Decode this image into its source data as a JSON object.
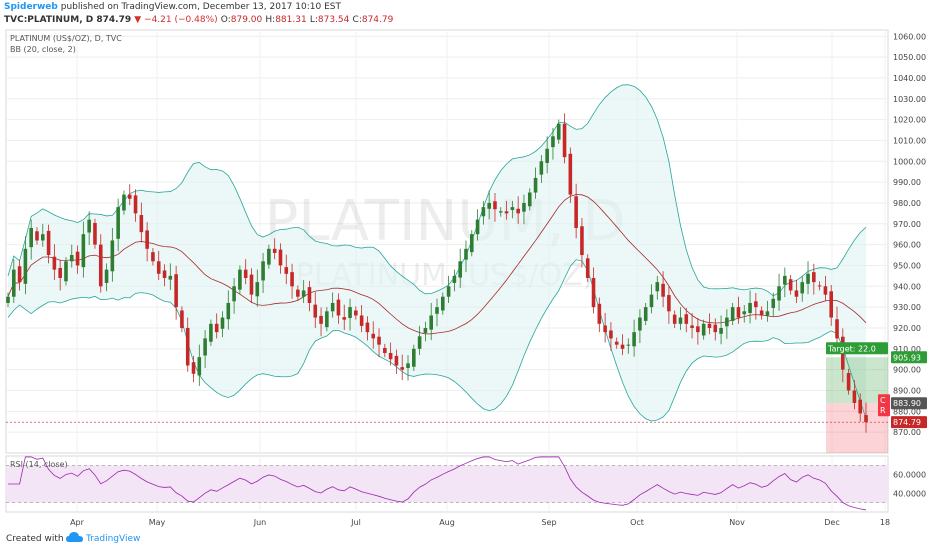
{
  "header": {
    "author": "Spiderweb",
    "published_text": "published on TradingView.com, December 13, 2017 10:10 EST",
    "symbol": "TVC:PLATINUM, D",
    "last": "874.79",
    "change": "−4.21 (−0.48%)",
    "o_label": "O:",
    "o_value": "879.00",
    "h_label": "H:",
    "h_value": "881.31",
    "l_label": "L:",
    "l_value": "873.54",
    "c_label": "C:",
    "c_value": "874.79"
  },
  "footer": {
    "created_with": "Created with",
    "brand": "TradingView"
  },
  "colors": {
    "up": "#2e7d32",
    "down": "#c62828",
    "bb_band": "#26a69a",
    "bb_fill": "#e0f2f1",
    "bb_basis": "#a52a2a",
    "rsi_line": "#9c27b0",
    "rsi_fill": "#f3e5f5",
    "target_green": "#2e9d36",
    "stop_red": "#f23645"
  },
  "chart_data": {
    "type": "candlestick",
    "title": "PLATINUM (US$/OZ), D, TVC",
    "watermark": [
      "PLATINUM, D",
      "PLATINUM (US$/OZ)"
    ],
    "indicator_bb": "BB (20, close, 2)",
    "indicator_rsi": "RSI (14, close)",
    "x_ticks": [
      "Apr",
      "May",
      "Jun",
      "Jul",
      "Aug",
      "Sep",
      "Oct",
      "Nov",
      "Dec",
      "18"
    ],
    "y_range": [
      860,
      1063
    ],
    "y_ticks": [
      870,
      880,
      890,
      900,
      910,
      920,
      930,
      940,
      950,
      960,
      970,
      980,
      990,
      1000,
      1010,
      1020,
      1030,
      1040,
      1050,
      1060
    ],
    "rsi_ticks": [
      "60.0000",
      "40.0000"
    ],
    "rsi_range": [
      20,
      80
    ],
    "rsi_levels": [
      70,
      30
    ],
    "price_labels": {
      "target_label": "Target: 22.0",
      "target_price": "905.93",
      "entry_price": "883.90",
      "current_price": "874.79",
      "stop_badge_c": "C",
      "stop_badge_r": "R"
    },
    "closes": [
      935,
      948,
      942,
      958,
      968,
      962,
      965,
      955,
      948,
      944,
      952,
      955,
      950,
      965,
      972,
      960,
      940,
      948,
      962,
      978,
      984,
      982,
      975,
      966,
      958,
      952,
      946,
      944,
      945,
      930,
      920,
      902,
      898,
      906,
      915,
      922,
      918,
      925,
      932,
      940,
      948,
      944,
      936,
      942,
      952,
      958,
      956,
      950,
      946,
      940,
      935,
      938,
      932,
      925,
      922,
      928,
      932,
      926,
      924,
      930,
      926,
      921,
      918,
      915,
      912,
      908,
      905,
      902,
      900,
      903,
      910,
      916,
      920,
      926,
      930,
      935,
      940,
      945,
      952,
      958,
      965,
      972,
      978,
      980,
      977,
      976,
      975,
      978,
      975,
      980,
      985,
      992,
      1000,
      1006,
      1012,
      1018,
      1002,
      984,
      968,
      955,
      944,
      930,
      922,
      918,
      915,
      912,
      910,
      912,
      918,
      925,
      930,
      936,
      942,
      935,
      928,
      922,
      925,
      922,
      920,
      918,
      922,
      920,
      918,
      920,
      925,
      930,
      925,
      928,
      932,
      930,
      926,
      928,
      934,
      940,
      945,
      938,
      935,
      942,
      946,
      942,
      940,
      936,
      925,
      915,
      900,
      890,
      884,
      879,
      874.79
    ]
  }
}
